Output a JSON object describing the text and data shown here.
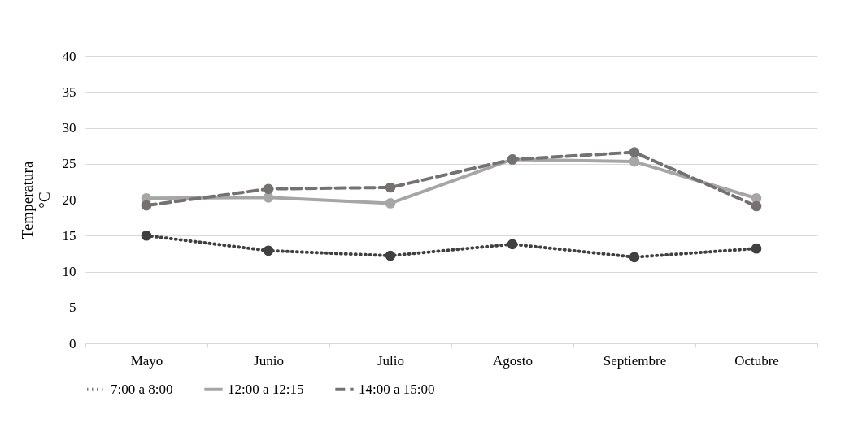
{
  "chart_data": {
    "type": "line",
    "ylabel": "Temperatura °C",
    "categories": [
      "Mayo",
      "Junio",
      "Julio",
      "Agosto",
      "Septiembre",
      "Octubre"
    ],
    "series": [
      {
        "name": "7:00 a 8:00",
        "color": "#404040",
        "line_style": "dotted",
        "values": [
          15,
          12.9,
          12.2,
          13.8,
          12,
          13.2
        ]
      },
      {
        "name": "12:00 a 12:15",
        "color": "#a6a6a6",
        "line_style": "solid",
        "values": [
          20.2,
          20.3,
          19.5,
          25.6,
          25.3,
          20.2
        ]
      },
      {
        "name": "14:00 a 15:00",
        "color": "#767171",
        "line_style": "dashed",
        "values": [
          19.2,
          21.5,
          21.7,
          25.6,
          26.6,
          19.1
        ]
      }
    ],
    "ylim": [
      0,
      40
    ],
    "yticks": [
      0,
      5,
      10,
      15,
      20,
      25,
      30,
      35,
      40
    ],
    "grid": "y",
    "legend": "bottom",
    "marker": "circle"
  }
}
